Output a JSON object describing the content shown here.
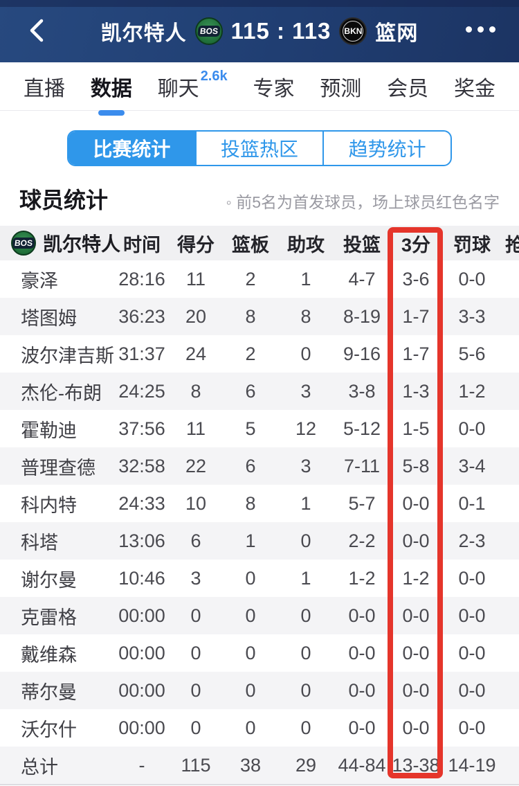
{
  "navbar": {
    "home_team": "凯尔特人",
    "home_logo": "BOS",
    "score": "115 : 113",
    "away_logo": "BKN",
    "away_team": "篮网"
  },
  "tabs": {
    "items": [
      {
        "label": "直播"
      },
      {
        "label": "数据"
      },
      {
        "label": "聊天",
        "badge": "2.6k"
      },
      {
        "label": "专家"
      },
      {
        "label": "预测"
      },
      {
        "label": "会员"
      },
      {
        "label": "奖金"
      }
    ]
  },
  "segments": {
    "items": [
      {
        "label": "比赛统计"
      },
      {
        "label": "投篮热区"
      },
      {
        "label": "趋势统计"
      }
    ],
    "accent_color": "#2f97ea"
  },
  "section": {
    "title": "球员统计",
    "note": "◦ 前5名为首发球员，场上球员红色名字"
  },
  "table": {
    "team": {
      "name": "凯尔特人",
      "logo": "BOS"
    },
    "columns": [
      "时间",
      "得分",
      "篮板",
      "助攻",
      "投篮",
      "3分",
      "罚球",
      "抢断"
    ],
    "highlight_column": "3分",
    "highlight_color": "#e5352b",
    "rows": [
      {
        "name": "豪泽",
        "cells": [
          "28:16",
          "11",
          "2",
          "1",
          "4-7",
          "3-6",
          "0-0",
          ""
        ]
      },
      {
        "name": "塔图姆",
        "cells": [
          "36:23",
          "20",
          "8",
          "8",
          "8-19",
          "1-7",
          "3-3",
          ""
        ]
      },
      {
        "name": "波尔津吉斯",
        "cells": [
          "31:37",
          "24",
          "2",
          "0",
          "9-16",
          "1-7",
          "5-6",
          ""
        ]
      },
      {
        "name": "杰伦-布朗",
        "cells": [
          "24:25",
          "8",
          "6",
          "3",
          "3-8",
          "1-3",
          "1-2",
          ""
        ]
      },
      {
        "name": "霍勒迪",
        "cells": [
          "37:56",
          "11",
          "5",
          "12",
          "5-12",
          "1-5",
          "0-0",
          ""
        ]
      },
      {
        "name": "普理查德",
        "cells": [
          "32:58",
          "22",
          "6",
          "3",
          "7-11",
          "5-8",
          "3-4",
          ""
        ]
      },
      {
        "name": "科内特",
        "cells": [
          "24:33",
          "10",
          "8",
          "1",
          "5-7",
          "0-0",
          "0-1",
          ""
        ]
      },
      {
        "name": "科塔",
        "cells": [
          "13:06",
          "6",
          "1",
          "0",
          "2-2",
          "0-0",
          "2-3",
          ""
        ]
      },
      {
        "name": "谢尔曼",
        "cells": [
          "10:46",
          "3",
          "0",
          "1",
          "1-2",
          "1-2",
          "0-0",
          ""
        ]
      },
      {
        "name": "克雷格",
        "cells": [
          "00:00",
          "0",
          "0",
          "0",
          "0-0",
          "0-0",
          "0-0",
          ""
        ]
      },
      {
        "name": "戴维森",
        "cells": [
          "00:00",
          "0",
          "0",
          "0",
          "0-0",
          "0-0",
          "0-0",
          ""
        ]
      },
      {
        "name": "蒂尔曼",
        "cells": [
          "00:00",
          "0",
          "0",
          "0",
          "0-0",
          "0-0",
          "0-0",
          ""
        ]
      },
      {
        "name": "沃尔什",
        "cells": [
          "00:00",
          "0",
          "0",
          "0",
          "0-0",
          "0-0",
          "0-0",
          ""
        ]
      },
      {
        "name": "总计",
        "total": true,
        "cells": [
          "-",
          "115",
          "38",
          "29",
          "44-84",
          "13-38",
          "14-19",
          ""
        ]
      }
    ]
  }
}
